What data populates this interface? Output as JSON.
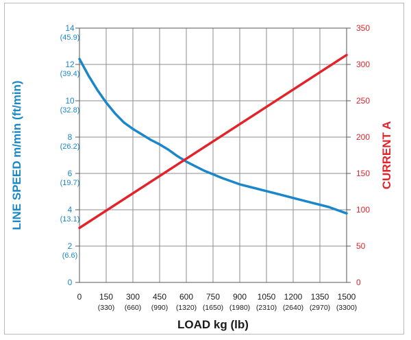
{
  "chart_data": {
    "type": "line",
    "title": "",
    "xlabel": "LOAD kg (lb)",
    "ylabel_left": "LINE SPEED m/min (ft/min)",
    "ylabel_right": "CURRENT A",
    "x_ticks": [
      {
        "kg": "0",
        "lb": ""
      },
      {
        "kg": "150",
        "lb": "(330)"
      },
      {
        "kg": "300",
        "lb": "(660)"
      },
      {
        "kg": "450",
        "lb": "(990)"
      },
      {
        "kg": "600",
        "lb": "(1320)"
      },
      {
        "kg": "750",
        "lb": "(1650)"
      },
      {
        "kg": "900",
        "lb": "(1980)"
      },
      {
        "kg": "1050",
        "lb": "(2310)"
      },
      {
        "kg": "1200",
        "lb": "(2640)"
      },
      {
        "kg": "1350",
        "lb": "(2970)"
      },
      {
        "kg": "1500",
        "lb": "(3300)"
      }
    ],
    "y_left_ticks": [
      {
        "value": "0",
        "alt": ""
      },
      {
        "value": "2",
        "alt": "(6.6)"
      },
      {
        "value": "4",
        "alt": "(13.1)"
      },
      {
        "value": "6",
        "alt": "(19.7)"
      },
      {
        "value": "8",
        "alt": "(26.2)"
      },
      {
        "value": "10",
        "alt": "(32.8)"
      },
      {
        "value": "12",
        "alt": "(39.4)"
      },
      {
        "value": "14",
        "alt": "(45.9)"
      }
    ],
    "y_right_ticks": [
      "0",
      "50",
      "100",
      "150",
      "200",
      "250",
      "300",
      "350"
    ],
    "xlim": [
      0,
      1500
    ],
    "ylim_left": [
      0,
      14
    ],
    "ylim_right": [
      0,
      350
    ],
    "grid": true,
    "series": [
      {
        "name": "",
        "axis": "left",
        "color": "#1a87c9",
        "points": [
          [
            0,
            12.3
          ],
          [
            50,
            11.4
          ],
          [
            100,
            10.6
          ],
          [
            150,
            9.9
          ],
          [
            200,
            9.3
          ],
          [
            250,
            8.8
          ],
          [
            300,
            8.45
          ],
          [
            350,
            8.15
          ],
          [
            400,
            7.85
          ],
          [
            450,
            7.6
          ],
          [
            500,
            7.3
          ],
          [
            550,
            6.95
          ],
          [
            600,
            6.65
          ],
          [
            650,
            6.4
          ],
          [
            700,
            6.15
          ],
          [
            750,
            5.95
          ],
          [
            800,
            5.75
          ],
          [
            900,
            5.4
          ],
          [
            1000,
            5.15
          ],
          [
            1100,
            4.9
          ],
          [
            1200,
            4.65
          ],
          [
            1300,
            4.4
          ],
          [
            1400,
            4.15
          ],
          [
            1500,
            3.8
          ]
        ]
      },
      {
        "name": "",
        "axis": "right",
        "color": "#e2232a",
        "points": [
          [
            0,
            75
          ],
          [
            1500,
            313
          ]
        ]
      }
    ]
  }
}
